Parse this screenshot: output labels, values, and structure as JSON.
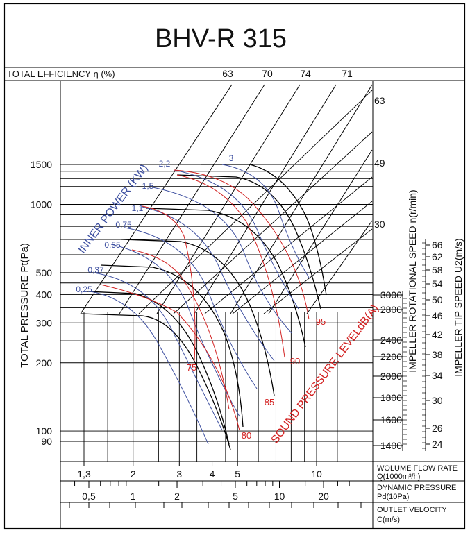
{
  "chart_data": {
    "type": "line",
    "title": "BHV-R 315",
    "efficiency_label": "TOTAL EFFICIENCY η (%)",
    "efficiency_values": [
      "63",
      "70",
      "74",
      "71"
    ],
    "ylabel": "TOTAL PRESSURE Pt(Pa)",
    "y_ticks": [
      {
        "label": "1500",
        "value": 1500
      },
      {
        "label": "1000",
        "value": 1000
      },
      {
        "label": "500",
        "value": 500
      },
      {
        "label": "400",
        "value": 400
      },
      {
        "label": "300",
        "value": 300
      },
      {
        "label": "200",
        "value": 200
      },
      {
        "label": "100",
        "value": 100
      },
      {
        "label": "90",
        "value": 90
      }
    ],
    "ylim": [
      85,
      1800
    ],
    "y_scale": "log",
    "speed_label": "IMPELLER ROTATIONAL SPEED n(r/min)",
    "speed_ticks": [
      "3000",
      "2800",
      "2400",
      "2200",
      "2000",
      "1800",
      "1600",
      "1400"
    ],
    "tip_speed_label": "IMPELLER TIP SPEED U2(m/s)",
    "tip_speed_ticks": [
      "66",
      "62",
      "58",
      "54",
      "50",
      "46",
      "42",
      "38",
      "34",
      "30",
      "26",
      "24"
    ],
    "power_label": "INNER POWER (KW)",
    "power_values": [
      "3",
      "2,2",
      "1,5",
      "1,1",
      "0,75",
      "0,55",
      "0,37",
      "0,25"
    ],
    "sound_label": "SOUND PRESSURE LEVELdB(A)",
    "sound_values": [
      "75",
      "80",
      "85",
      "90",
      "95"
    ],
    "speed_line_values": [
      "63",
      "49",
      "30"
    ],
    "flow_axis": {
      "label": "WOLUME FLOW RATE",
      "unit": "Q(1000m³/h)",
      "ticks": [
        "1,3",
        "2",
        "3",
        "4",
        "5",
        "10"
      ],
      "xlim": [
        1.2,
        13
      ]
    },
    "pressure_axis": {
      "label": "DYNAMIC PRESSURE",
      "unit": "Pd(10Pa)",
      "ticks": [
        "0,5",
        "1",
        "2",
        "5",
        "10",
        "20"
      ]
    },
    "velocity_axis": {
      "label": "OUTLET VELOCITY",
      "unit": "C(m/s)"
    },
    "grid": true,
    "colors": {
      "power": "#3d4fa0",
      "sound": "#d22020",
      "lines": "#000000"
    }
  }
}
